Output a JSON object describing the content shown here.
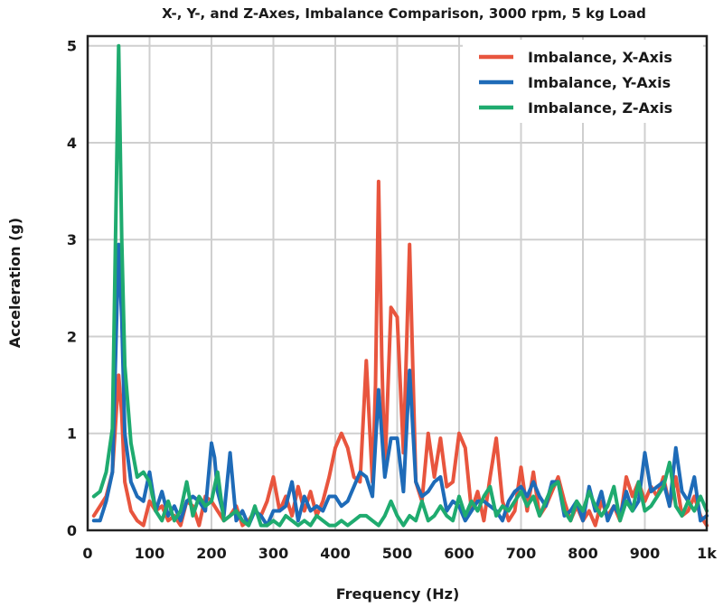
{
  "chart_data": {
    "type": "line",
    "title": "X-, Y-, and Z-Axes, Imbalance Comparison, 3000 rpm, 5 kg Load",
    "xlabel": "Frequency (Hz)",
    "ylabel": "Acceleration (g)",
    "xlim": [
      0,
      1000
    ],
    "ylim": [
      0,
      5.1
    ],
    "xticks": [
      0,
      100,
      200,
      300,
      400,
      500,
      600,
      700,
      800,
      900,
      1000
    ],
    "xtick_labels": [
      "0",
      "100",
      "200",
      "300",
      "400",
      "500",
      "600",
      "700",
      "800",
      "900",
      "1k"
    ],
    "yticks": [
      0,
      1,
      2,
      3,
      4,
      5
    ],
    "ytick_labels": [
      "0",
      "1",
      "2",
      "3",
      "4",
      "5"
    ],
    "grid": true,
    "legend_position": "top-right",
    "series": [
      {
        "name": "Imbalance, X-Axis",
        "color": "#e8553e",
        "x": [
          10,
          20,
          30,
          40,
          50,
          55,
          60,
          70,
          80,
          90,
          100,
          110,
          120,
          130,
          140,
          150,
          160,
          170,
          180,
          190,
          200,
          210,
          220,
          230,
          240,
          250,
          260,
          270,
          280,
          290,
          300,
          310,
          320,
          330,
          340,
          350,
          360,
          370,
          380,
          390,
          400,
          410,
          420,
          430,
          440,
          450,
          460,
          465,
          470,
          475,
          480,
          490,
          500,
          510,
          520,
          530,
          540,
          550,
          560,
          570,
          580,
          590,
          600,
          610,
          620,
          630,
          640,
          650,
          660,
          670,
          680,
          690,
          700,
          710,
          720,
          730,
          740,
          750,
          760,
          770,
          780,
          790,
          800,
          810,
          820,
          830,
          840,
          850,
          860,
          870,
          880,
          890,
          900,
          910,
          920,
          930,
          940,
          950,
          960,
          970,
          980,
          990,
          1000
        ],
        "y": [
          0.15,
          0.25,
          0.35,
          0.6,
          1.6,
          1.2,
          0.5,
          0.2,
          0.1,
          0.05,
          0.3,
          0.2,
          0.25,
          0.1,
          0.15,
          0.05,
          0.3,
          0.25,
          0.05,
          0.35,
          0.3,
          0.2,
          0.1,
          0.15,
          0.25,
          0.05,
          0.1,
          0.2,
          0.15,
          0.3,
          0.55,
          0.2,
          0.35,
          0.15,
          0.45,
          0.2,
          0.4,
          0.15,
          0.3,
          0.55,
          0.85,
          1.0,
          0.85,
          0.55,
          0.5,
          1.75,
          0.5,
          1.5,
          3.6,
          1.8,
          0.6,
          2.3,
          2.2,
          0.8,
          2.95,
          0.5,
          0.3,
          1.0,
          0.55,
          0.95,
          0.45,
          0.5,
          1.0,
          0.85,
          0.2,
          0.4,
          0.1,
          0.55,
          0.95,
          0.3,
          0.1,
          0.2,
          0.65,
          0.2,
          0.6,
          0.15,
          0.25,
          0.4,
          0.55,
          0.3,
          0.1,
          0.25,
          0.1,
          0.2,
          0.05,
          0.3,
          0.15,
          0.25,
          0.1,
          0.55,
          0.35,
          0.5,
          0.3,
          0.45,
          0.35,
          0.55,
          0.25,
          0.55,
          0.15,
          0.2,
          0.35,
          0.15,
          0.05
        ]
      },
      {
        "name": "Imbalance, Y-Axis",
        "color": "#1e6bb8",
        "x": [
          10,
          20,
          30,
          40,
          50,
          55,
          60,
          70,
          80,
          90,
          100,
          110,
          120,
          130,
          140,
          150,
          160,
          170,
          180,
          190,
          200,
          205,
          210,
          220,
          230,
          240,
          250,
          260,
          270,
          280,
          290,
          300,
          310,
          320,
          330,
          340,
          350,
          360,
          370,
          380,
          390,
          400,
          410,
          420,
          430,
          440,
          450,
          460,
          470,
          480,
          490,
          500,
          510,
          520,
          530,
          540,
          550,
          560,
          570,
          580,
          590,
          600,
          610,
          620,
          630,
          640,
          650,
          660,
          670,
          680,
          690,
          700,
          710,
          720,
          730,
          740,
          750,
          760,
          770,
          780,
          790,
          800,
          810,
          820,
          830,
          840,
          850,
          860,
          870,
          880,
          890,
          900,
          910,
          920,
          930,
          940,
          950,
          960,
          970,
          980,
          990,
          1000
        ],
        "y": [
          0.1,
          0.1,
          0.3,
          0.6,
          2.95,
          2.2,
          1.0,
          0.5,
          0.35,
          0.3,
          0.6,
          0.2,
          0.4,
          0.15,
          0.25,
          0.1,
          0.3,
          0.35,
          0.3,
          0.2,
          0.9,
          0.75,
          0.4,
          0.15,
          0.8,
          0.1,
          0.2,
          0.05,
          0.2,
          0.15,
          0.05,
          0.2,
          0.2,
          0.25,
          0.5,
          0.1,
          0.35,
          0.2,
          0.25,
          0.2,
          0.35,
          0.35,
          0.25,
          0.3,
          0.45,
          0.6,
          0.55,
          0.35,
          1.45,
          0.55,
          0.95,
          0.95,
          0.4,
          1.65,
          0.5,
          0.35,
          0.4,
          0.5,
          0.55,
          0.2,
          0.3,
          0.25,
          0.1,
          0.2,
          0.3,
          0.3,
          0.25,
          0.2,
          0.1,
          0.3,
          0.4,
          0.45,
          0.35,
          0.5,
          0.35,
          0.25,
          0.5,
          0.5,
          0.15,
          0.2,
          0.3,
          0.1,
          0.45,
          0.2,
          0.4,
          0.1,
          0.25,
          0.15,
          0.4,
          0.2,
          0.3,
          0.8,
          0.4,
          0.45,
          0.5,
          0.25,
          0.85,
          0.4,
          0.3,
          0.55,
          0.1,
          0.15
        ]
      },
      {
        "name": "Imbalance, Z-Axis",
        "color": "#1fab6f",
        "x": [
          10,
          20,
          30,
          40,
          45,
          50,
          55,
          60,
          70,
          80,
          90,
          100,
          110,
          120,
          130,
          140,
          150,
          160,
          170,
          180,
          190,
          200,
          210,
          220,
          230,
          240,
          250,
          260,
          270,
          280,
          290,
          300,
          310,
          320,
          330,
          340,
          350,
          360,
          370,
          380,
          390,
          400,
          410,
          420,
          430,
          440,
          450,
          460,
          470,
          480,
          490,
          500,
          510,
          520,
          530,
          540,
          550,
          560,
          570,
          580,
          590,
          600,
          610,
          620,
          630,
          640,
          650,
          660,
          670,
          680,
          690,
          700,
          710,
          720,
          730,
          740,
          750,
          760,
          770,
          780,
          790,
          800,
          810,
          820,
          830,
          840,
          850,
          860,
          870,
          880,
          890,
          900,
          910,
          920,
          930,
          940,
          950,
          960,
          970,
          980,
          990,
          1000
        ],
        "y": [
          0.35,
          0.4,
          0.6,
          1.05,
          3.0,
          5.0,
          3.0,
          1.7,
          0.9,
          0.55,
          0.6,
          0.5,
          0.2,
          0.1,
          0.3,
          0.1,
          0.2,
          0.5,
          0.15,
          0.35,
          0.25,
          0.3,
          0.6,
          0.1,
          0.15,
          0.2,
          0.1,
          0.05,
          0.25,
          0.05,
          0.05,
          0.1,
          0.05,
          0.15,
          0.1,
          0.05,
          0.1,
          0.05,
          0.15,
          0.1,
          0.05,
          0.05,
          0.1,
          0.05,
          0.1,
          0.15,
          0.15,
          0.1,
          0.05,
          0.15,
          0.3,
          0.15,
          0.05,
          0.15,
          0.1,
          0.3,
          0.1,
          0.15,
          0.25,
          0.15,
          0.1,
          0.35,
          0.15,
          0.3,
          0.2,
          0.35,
          0.45,
          0.15,
          0.25,
          0.2,
          0.3,
          0.4,
          0.25,
          0.35,
          0.15,
          0.3,
          0.45,
          0.5,
          0.2,
          0.1,
          0.3,
          0.2,
          0.4,
          0.25,
          0.15,
          0.25,
          0.45,
          0.1,
          0.3,
          0.2,
          0.5,
          0.2,
          0.25,
          0.35,
          0.45,
          0.7,
          0.25,
          0.15,
          0.3,
          0.2,
          0.35,
          0.2
        ]
      }
    ]
  }
}
